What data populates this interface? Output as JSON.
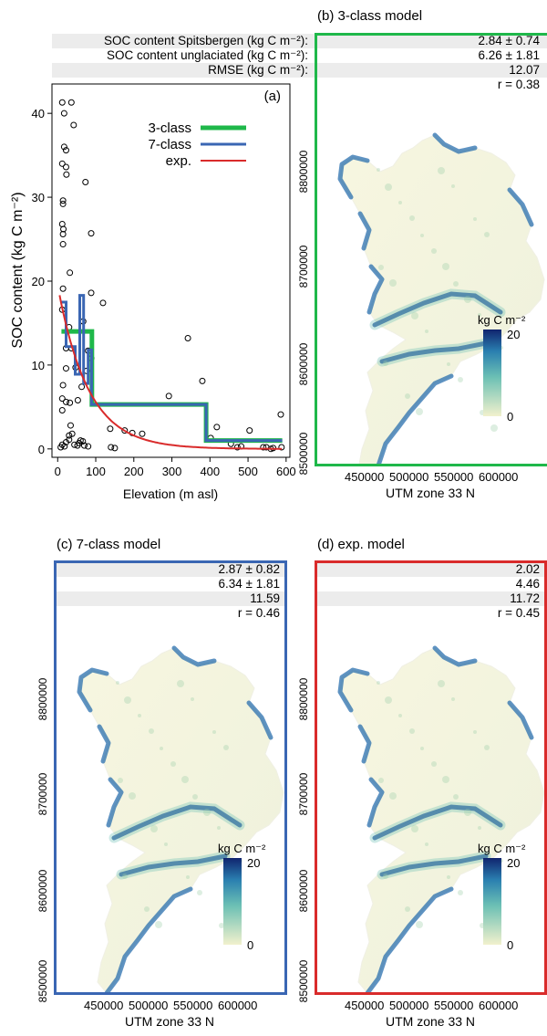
{
  "stats_labels": [
    "SOC content Spitsbergen (kg C m⁻²):",
    "SOC content unglaciated (kg C m⁻²):",
    "RMSE (kg C m⁻²):"
  ],
  "colors": {
    "class3": "#1fb84a",
    "class7": "#3a66b3",
    "exp": "#d92b2b",
    "grey_band": "#ececec",
    "colorbar_low": "#f2f1cd",
    "colorbar_mid": "#3aa0b8",
    "colorbar_high": "#10246e"
  },
  "panels": [
    {
      "id": "b",
      "title": "(b) 3-class model",
      "stats": [
        "2.84 ± 0.74",
        "6.26 ± 1.81",
        "12.07",
        "r = 0.38"
      ],
      "y_ticks": [
        "8800000",
        "8700000",
        "8600000",
        "8500000"
      ],
      "x_ticks": [
        "450000",
        "500000",
        "550000",
        "600000"
      ],
      "xlabel": "UTM zone 33 N",
      "colorbar_title": "kg C m⁻²",
      "colorbar_ticks": [
        "20",
        "0"
      ]
    },
    {
      "id": "c",
      "title": "(c) 7-class model",
      "stats": [
        "2.87 ± 0.82",
        "6.34 ± 1.81",
        "11.59",
        "r = 0.46"
      ],
      "y_ticks": [
        "8800000",
        "8700000",
        "8600000",
        "8500000"
      ],
      "x_ticks": [
        "450000",
        "500000",
        "550000",
        "600000"
      ],
      "xlabel": "UTM zone 33 N",
      "colorbar_title": "kg C m⁻²",
      "colorbar_ticks": [
        "20",
        "0"
      ]
    },
    {
      "id": "d",
      "title": "(d) exp. model",
      "stats": [
        "2.02",
        "4.46",
        "11.72",
        "r = 0.45"
      ],
      "y_ticks": [
        "8800000",
        "8700000",
        "8600000",
        "8500000"
      ],
      "x_ticks": [
        "450000",
        "500000",
        "550000",
        "600000"
      ],
      "xlabel": "UTM zone 33 N",
      "colorbar_title": "kg C m⁻²",
      "colorbar_ticks": [
        "20",
        "0"
      ]
    }
  ],
  "chart_data": [
    {
      "type": "scatter",
      "panel_label": "(a)",
      "xlabel": "Elevation (m asl)",
      "ylabel": "SOC content (kg C m⁻²)",
      "xlim": [
        -15,
        610
      ],
      "ylim": [
        -1,
        43.5
      ],
      "xticks": [
        0,
        100,
        200,
        300,
        400,
        500,
        600
      ],
      "yticks": [
        0,
        10,
        20,
        30,
        40
      ],
      "legend": [
        "3-class",
        "7-class",
        "exp."
      ],
      "legend_position": "top-right",
      "points": [
        [
          12,
          41.3
        ],
        [
          36,
          41.3
        ],
        [
          17,
          40
        ],
        [
          42,
          38.6
        ],
        [
          73,
          31.8
        ],
        [
          17,
          36
        ],
        [
          22,
          35.6
        ],
        [
          12,
          34
        ],
        [
          22,
          33.6
        ],
        [
          23,
          32.7
        ],
        [
          14,
          29.6
        ],
        [
          14,
          29.2
        ],
        [
          12,
          26.8
        ],
        [
          15,
          26.2
        ],
        [
          14,
          25.6
        ],
        [
          14,
          24.4
        ],
        [
          88,
          25.7
        ],
        [
          32,
          21
        ],
        [
          14,
          19.1
        ],
        [
          88,
          18.6
        ],
        [
          12,
          16.6
        ],
        [
          67,
          15.2
        ],
        [
          30,
          14.5
        ],
        [
          119,
          17.4
        ],
        [
          22,
          12
        ],
        [
          36,
          12
        ],
        [
          80,
          11.7
        ],
        [
          88,
          10.8
        ],
        [
          22,
          9.6
        ],
        [
          47,
          9.7
        ],
        [
          76,
          9.3
        ],
        [
          63,
          7.4
        ],
        [
          14,
          7.6
        ],
        [
          12,
          6
        ],
        [
          22,
          5.6
        ],
        [
          32,
          5.5
        ],
        [
          53,
          5.8
        ],
        [
          12,
          4.6
        ],
        [
          34,
          2.8
        ],
        [
          30,
          1.6
        ],
        [
          30,
          1.1
        ],
        [
          38,
          1.8
        ],
        [
          60,
          1
        ],
        [
          66,
          0.9
        ],
        [
          12,
          0.5
        ],
        [
          18,
          0.3
        ],
        [
          22,
          0.8
        ],
        [
          44,
          0.5
        ],
        [
          52,
          0.4
        ],
        [
          56,
          0.7
        ],
        [
          70,
          0.4
        ],
        [
          80,
          0.3
        ],
        [
          8,
          0.2
        ],
        [
          140,
          0.2
        ],
        [
          150,
          0.1
        ],
        [
          138,
          2.4
        ],
        [
          176,
          2.2
        ],
        [
          196,
          1.9
        ],
        [
          222,
          1.8
        ],
        [
          292,
          6.3
        ],
        [
          342,
          13.2
        ],
        [
          380,
          8.1
        ],
        [
          418,
          2.6
        ],
        [
          472,
          0.2
        ],
        [
          482,
          0.3
        ],
        [
          504,
          2.2
        ],
        [
          540,
          0.2
        ],
        [
          548,
          0.2
        ],
        [
          560,
          0
        ],
        [
          586,
          4.1
        ],
        [
          588,
          0.2
        ],
        [
          566,
          0.1
        ],
        [
          402,
          1.3
        ],
        [
          455,
          0.6
        ]
      ],
      "series": [
        {
          "name": "3-class",
          "x": [
            10,
            90,
            90,
            110,
            110,
            390,
            390,
            410,
            410,
            590
          ],
          "y": [
            14,
            14,
            5.3,
            5.3,
            5.3,
            5.3,
            1,
            1,
            1,
            1
          ]
        },
        {
          "name": "7-class",
          "x": [
            10,
            22,
            22,
            46,
            46,
            58,
            58,
            68,
            68,
            80,
            80,
            89,
            89,
            110,
            110,
            390,
            390,
            410,
            410,
            590
          ],
          "y": [
            17.5,
            17.5,
            12.2,
            12.2,
            8.9,
            8.9,
            18.3,
            18.3,
            7.8,
            7.8,
            11.8,
            11.8,
            5.3,
            5.3,
            5.3,
            5.3,
            1,
            1,
            1,
            1
          ]
        },
        {
          "name": "exp.",
          "curve": "exponential",
          "a": 19.5,
          "b": 0.0125,
          "x_range": [
            5,
            590
          ]
        }
      ]
    }
  ]
}
